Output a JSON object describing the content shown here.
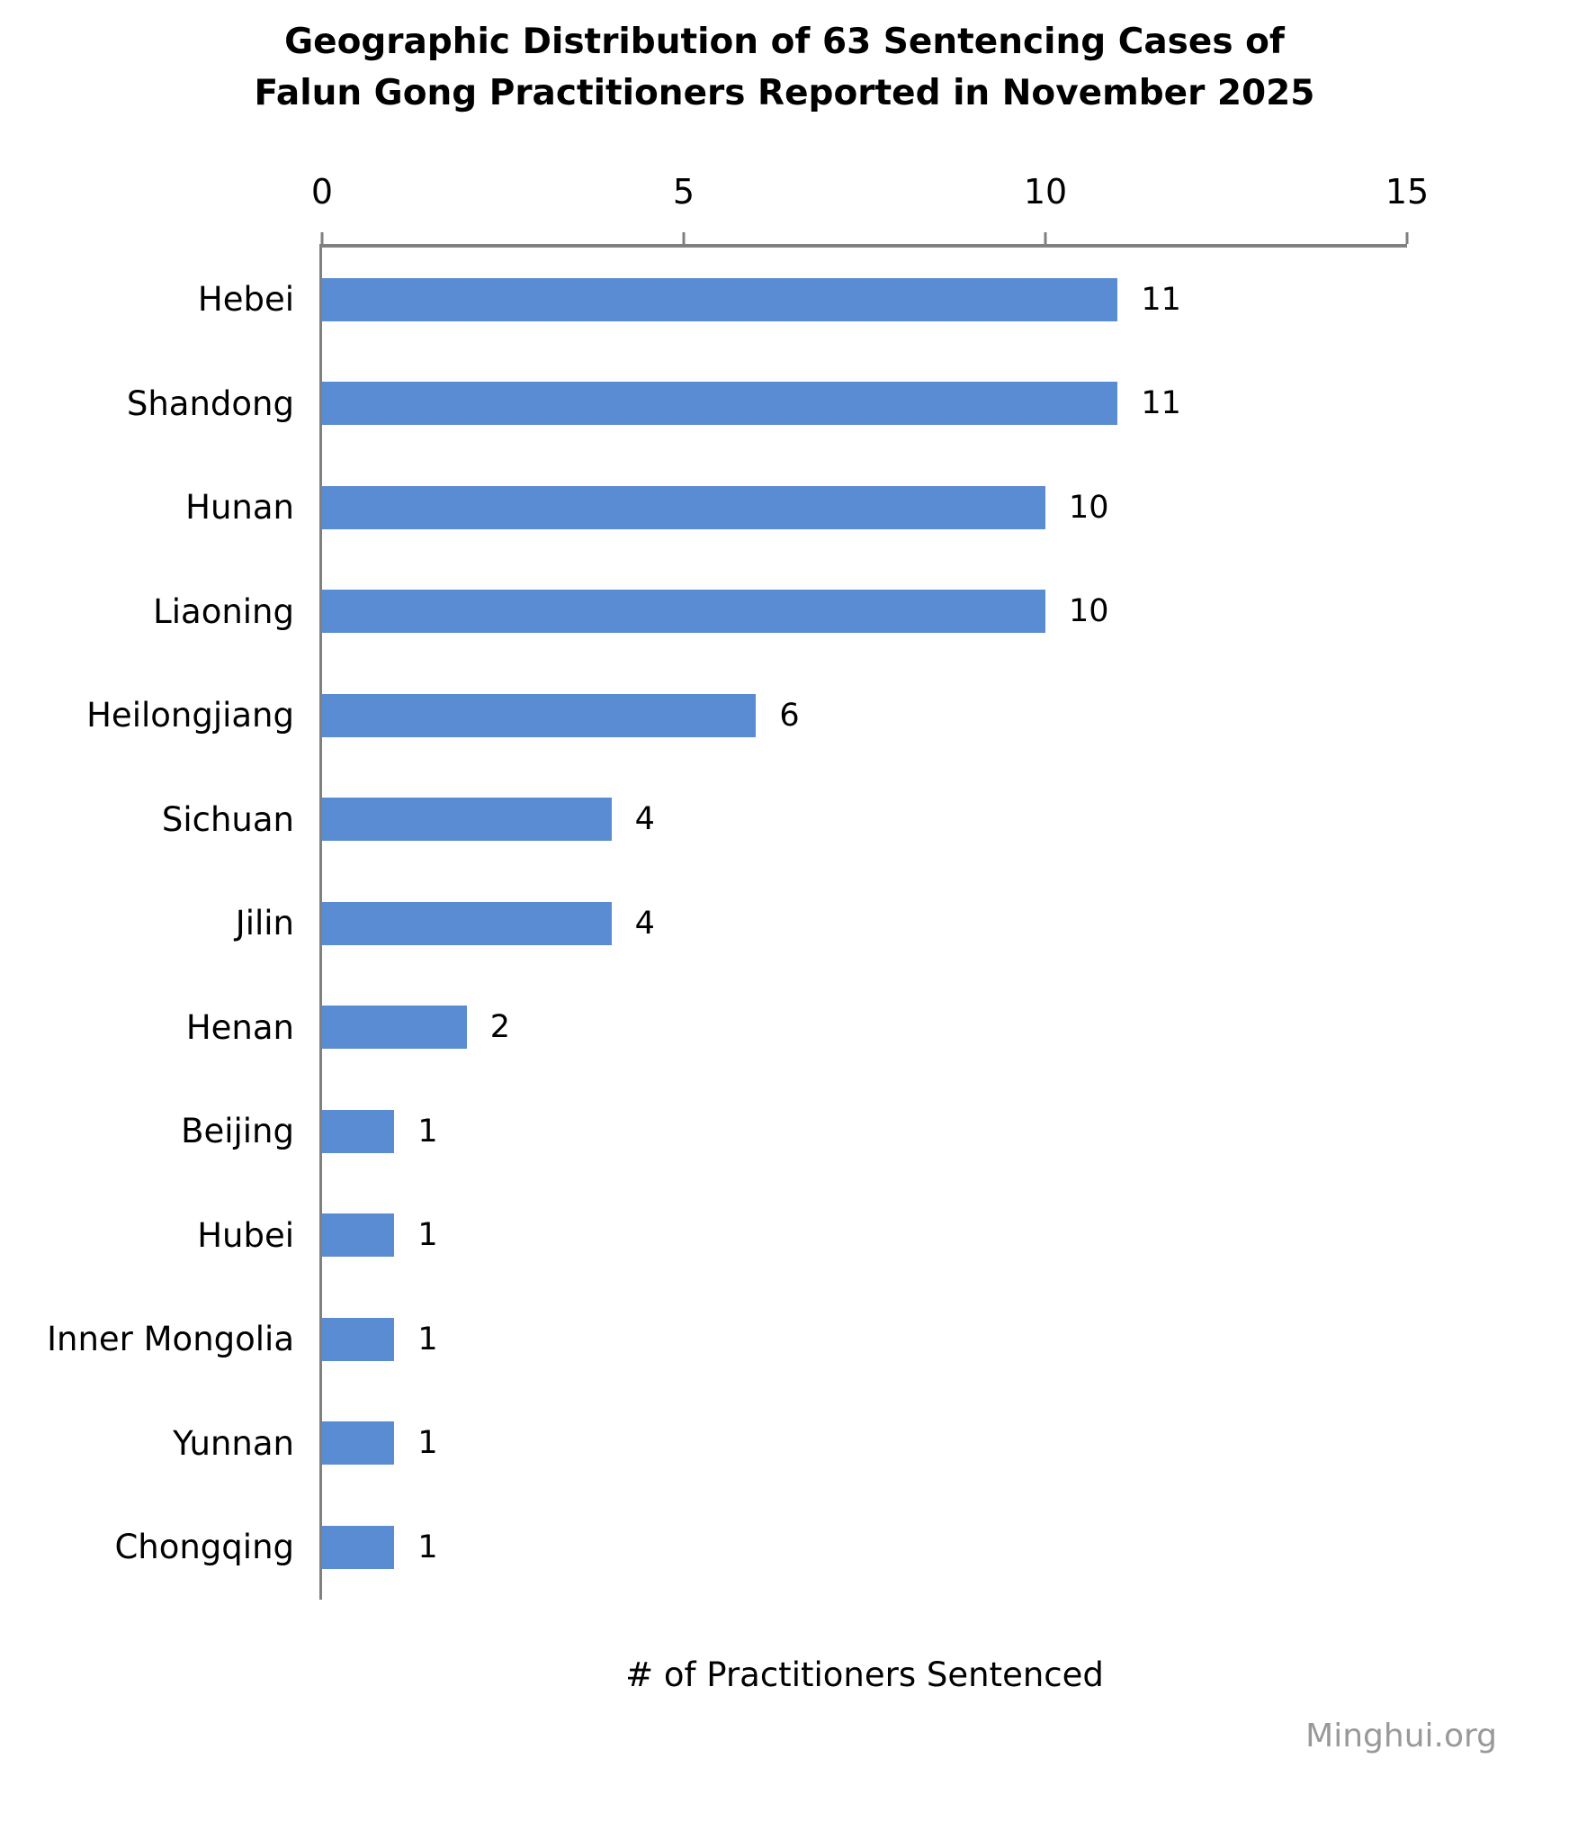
{
  "title": {
    "line1": "Geographic Distribution of 63 Sentencing Cases of",
    "line2": "Falun Gong Practitioners Reported in November 2025"
  },
  "chart_data": {
    "type": "bar",
    "orientation": "horizontal",
    "title": "Geographic Distribution of 63 Sentencing Cases of Falun Gong Practitioners Reported in November 2025",
    "categories": [
      "Hebei",
      "Shandong",
      "Hunan",
      "Liaoning",
      "Heilongjiang",
      "Sichuan",
      "Jilin",
      "Henan",
      "Beijing",
      "Hubei",
      "Inner Mongolia",
      "Yunnan",
      "Chongqing"
    ],
    "values": [
      11,
      11,
      10,
      10,
      6,
      4,
      4,
      2,
      1,
      1,
      1,
      1,
      1
    ],
    "total_cases": 63,
    "xlabel": "# of Practitioners Sentenced",
    "xlim": [
      0,
      15
    ],
    "xticks": [
      0,
      5,
      10,
      15
    ],
    "axis_position": "top",
    "data_labels": true,
    "grid": false,
    "legend": false,
    "bar_color": "#5A8CD3",
    "axis_color": "#808080",
    "label_color": "#000000"
  },
  "footer": {
    "credit": "Minghui.org",
    "credit_color": "#999999"
  }
}
